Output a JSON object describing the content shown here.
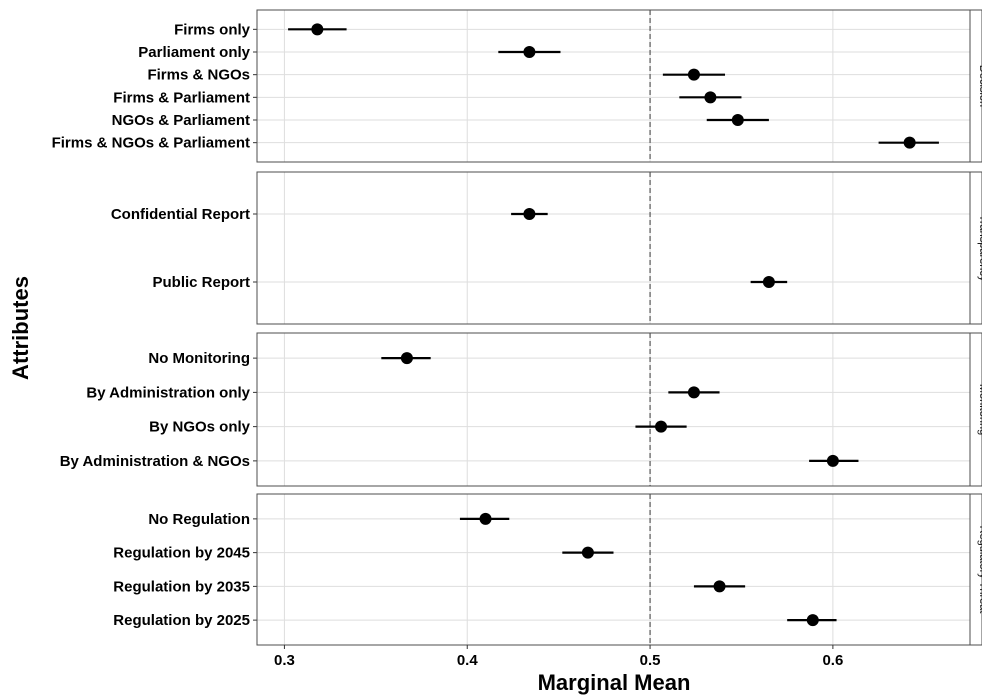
{
  "chart_data": {
    "type": "scatter",
    "xlabel": "Marginal Mean",
    "ylabel": "Attributes",
    "xlim": [
      0.285,
      0.675
    ],
    "xticks": [
      "0.3",
      "0.4",
      "0.5",
      "0.6"
    ],
    "xtick_values": [
      0.3,
      0.4,
      0.5,
      0.6
    ],
    "reference_line": 0.5,
    "grid": true,
    "facets": [
      {
        "strip": "Decision",
        "items": [
          {
            "label": "Firms only",
            "mean": 0.318,
            "lower": 0.302,
            "upper": 0.334
          },
          {
            "label": "Parliament only",
            "mean": 0.434,
            "lower": 0.417,
            "upper": 0.451
          },
          {
            "label": "Firms & NGOs",
            "mean": 0.524,
            "lower": 0.507,
            "upper": 0.541
          },
          {
            "label": "Firms & Parliament",
            "mean": 0.533,
            "lower": 0.516,
            "upper": 0.55
          },
          {
            "label": "NGOs & Parliament",
            "mean": 0.548,
            "lower": 0.531,
            "upper": 0.565
          },
          {
            "label": "Firms & NGOs & Parliament",
            "mean": 0.642,
            "lower": 0.625,
            "upper": 0.658
          }
        ]
      },
      {
        "strip": "Transparency",
        "items": [
          {
            "label": "Confidential Report",
            "mean": 0.434,
            "lower": 0.424,
            "upper": 0.444
          },
          {
            "label": "Public Report",
            "mean": 0.565,
            "lower": 0.555,
            "upper": 0.575
          }
        ]
      },
      {
        "strip": "Monitoring",
        "items": [
          {
            "label": "No Monitoring",
            "mean": 0.367,
            "lower": 0.353,
            "upper": 0.38
          },
          {
            "label": "By Administration only",
            "mean": 0.524,
            "lower": 0.51,
            "upper": 0.538
          },
          {
            "label": "By NGOs only",
            "mean": 0.506,
            "lower": 0.492,
            "upper": 0.52
          },
          {
            "label": "By Administration & NGOs",
            "mean": 0.6,
            "lower": 0.587,
            "upper": 0.614
          }
        ]
      },
      {
        "strip": "Regulatory Threat",
        "items": [
          {
            "label": "No Regulation",
            "mean": 0.41,
            "lower": 0.396,
            "upper": 0.423
          },
          {
            "label": "Regulation by 2045",
            "mean": 0.466,
            "lower": 0.452,
            "upper": 0.48
          },
          {
            "label": "Regulation by 2035",
            "mean": 0.538,
            "lower": 0.524,
            "upper": 0.552
          },
          {
            "label": "Regulation by 2025",
            "mean": 0.589,
            "lower": 0.575,
            "upper": 0.602
          }
        ]
      }
    ]
  },
  "colors": {
    "point": "#000000",
    "grid": "#dedede",
    "panel_border": "#4d4d4d",
    "reference_line": "#555555"
  }
}
